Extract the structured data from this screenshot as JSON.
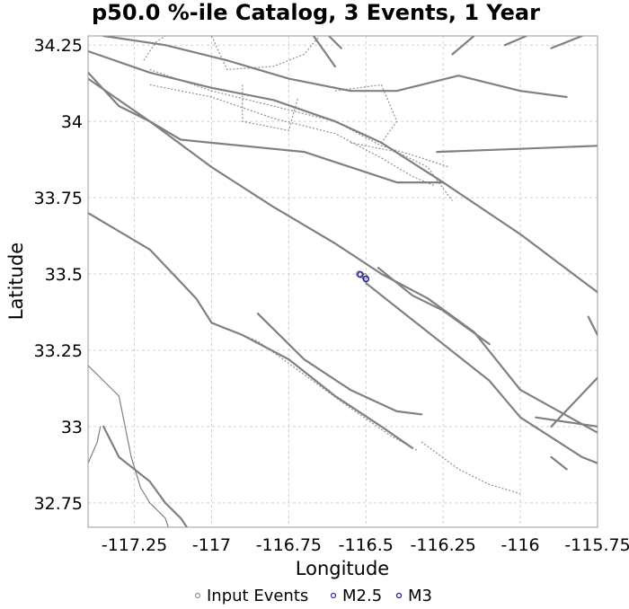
{
  "chart_data": {
    "type": "scatter",
    "title": "p50.0 %-ile Catalog, 3 Events, 1 Year",
    "xlabel": "Longitude",
    "ylabel": "Latitude",
    "xlim": [
      -117.4,
      -115.75
    ],
    "ylim": [
      32.67,
      34.28
    ],
    "xticks": [
      {
        "value": -117.25,
        "label": "-117.25"
      },
      {
        "value": -117.0,
        "label": "-117"
      },
      {
        "value": -116.75,
        "label": "-116.75"
      },
      {
        "value": -116.5,
        "label": "-116.5"
      },
      {
        "value": -116.25,
        "label": "-116.25"
      },
      {
        "value": -116.0,
        "label": "-116"
      },
      {
        "value": -115.75,
        "label": "-115.75"
      }
    ],
    "yticks": [
      {
        "value": 34.25,
        "label": "34.25"
      },
      {
        "value": 34.0,
        "label": "34"
      },
      {
        "value": 33.75,
        "label": "33.75"
      },
      {
        "value": 33.5,
        "label": "33.5"
      },
      {
        "value": 33.25,
        "label": "33.25"
      },
      {
        "value": 33.0,
        "label": "33"
      },
      {
        "value": 32.75,
        "label": "32.75"
      }
    ],
    "grid": true,
    "legend_position": "bottom",
    "series": [
      {
        "name": "Input Events",
        "color": "#909090",
        "marker": "circle-open",
        "points": [
          {
            "x": -116.522,
            "y": 33.5
          },
          {
            "x": -116.505,
            "y": 33.492
          }
        ]
      },
      {
        "name": "M2.5",
        "color": "#2a2aa0",
        "marker": "circle-open",
        "points": [
          {
            "x": -116.518,
            "y": 33.498
          }
        ]
      },
      {
        "name": "M3",
        "color": "#1a1a8a",
        "marker": "circle-open",
        "points": [
          {
            "x": -116.5,
            "y": 33.484
          }
        ]
      }
    ],
    "faults": {
      "solid": [
        [
          [
            -117.4,
            34.23
          ],
          [
            -117.2,
            34.16
          ],
          [
            -117.0,
            34.11
          ],
          [
            -116.8,
            34.07
          ],
          [
            -116.6,
            34.0
          ],
          [
            -116.45,
            33.93
          ],
          [
            -116.25,
            33.8
          ],
          [
            -116.0,
            33.63
          ],
          [
            -115.75,
            33.44
          ]
        ],
        [
          [
            -117.4,
            34.14
          ],
          [
            -117.2,
            34.0
          ],
          [
            -117.0,
            33.85
          ],
          [
            -116.8,
            33.72
          ],
          [
            -116.6,
            33.6
          ],
          [
            -116.45,
            33.5
          ],
          [
            -116.3,
            33.42
          ],
          [
            -116.15,
            33.31
          ],
          [
            -116.0,
            33.12
          ],
          [
            -115.75,
            32.98
          ]
        ],
        [
          [
            -117.4,
            33.7
          ],
          [
            -117.2,
            33.58
          ],
          [
            -117.05,
            33.42
          ],
          [
            -117.0,
            33.34
          ],
          [
            -116.9,
            33.3
          ],
          [
            -116.75,
            33.22
          ],
          [
            -116.6,
            33.1
          ],
          [
            -116.45,
            33.0
          ],
          [
            -116.35,
            32.93
          ]
        ],
        [
          [
            -116.5,
            33.47
          ],
          [
            -116.4,
            33.39
          ],
          [
            -116.25,
            33.27
          ],
          [
            -116.1,
            33.15
          ],
          [
            -116.0,
            33.03
          ],
          [
            -115.8,
            32.9
          ],
          [
            -115.75,
            32.88
          ]
        ],
        [
          [
            -116.85,
            33.37
          ],
          [
            -116.7,
            33.22
          ],
          [
            -116.55,
            33.12
          ],
          [
            -116.4,
            33.05
          ],
          [
            -116.32,
            33.04
          ]
        ],
        [
          [
            -117.4,
            34.16
          ],
          [
            -117.3,
            34.05
          ],
          [
            -117.2,
            34.0
          ],
          [
            -117.1,
            33.94
          ],
          [
            -116.9,
            33.92
          ],
          [
            -116.7,
            33.9
          ],
          [
            -116.55,
            33.85
          ],
          [
            -116.4,
            33.8
          ],
          [
            -116.25,
            33.8
          ]
        ],
        [
          [
            -117.35,
            34.28
          ],
          [
            -117.15,
            34.25
          ],
          [
            -116.95,
            34.2
          ],
          [
            -116.75,
            34.14
          ],
          [
            -116.55,
            34.1
          ],
          [
            -116.4,
            34.1
          ],
          [
            -116.2,
            34.15
          ],
          [
            -116.0,
            34.1
          ],
          [
            -115.85,
            34.08
          ]
        ],
        [
          [
            -116.27,
            33.9
          ],
          [
            -116.0,
            33.91
          ],
          [
            -115.75,
            33.92
          ]
        ],
        [
          [
            -116.46,
            33.52
          ],
          [
            -116.35,
            33.43
          ],
          [
            -116.25,
            33.38
          ],
          [
            -116.1,
            33.27
          ]
        ],
        [
          [
            -115.95,
            33.03
          ],
          [
            -115.75,
            33.0
          ]
        ],
        [
          [
            -115.9,
            32.9
          ],
          [
            -115.85,
            32.86
          ]
        ],
        [
          [
            -115.9,
            33.0
          ],
          [
            -115.75,
            33.16
          ]
        ],
        [
          [
            -116.22,
            34.22
          ],
          [
            -116.15,
            34.28
          ]
        ],
        [
          [
            -116.05,
            34.25
          ],
          [
            -115.98,
            34.28
          ]
        ],
        [
          [
            -115.9,
            34.24
          ],
          [
            -115.8,
            34.28
          ]
        ],
        [
          [
            -116.67,
            34.28
          ],
          [
            -116.6,
            34.18
          ]
        ],
        [
          [
            -116.62,
            34.28
          ],
          [
            -116.58,
            34.24
          ]
        ],
        [
          [
            -115.78,
            33.36
          ],
          [
            -115.75,
            33.3
          ]
        ],
        [
          [
            -117.35,
            33.0
          ],
          [
            -117.3,
            32.9
          ],
          [
            -117.2,
            32.82
          ],
          [
            -117.15,
            32.75
          ],
          [
            -117.1,
            32.7
          ],
          [
            -117.08,
            32.67
          ]
        ]
      ],
      "dotted": [
        [
          [
            -117.2,
            34.17
          ],
          [
            -117.0,
            34.1
          ],
          [
            -116.8,
            34.05
          ],
          [
            -116.6,
            34.0
          ],
          [
            -116.45,
            33.92
          ],
          [
            -116.32,
            33.88
          ],
          [
            -116.23,
            33.85
          ]
        ],
        [
          [
            -117.2,
            34.12
          ],
          [
            -117.0,
            34.08
          ],
          [
            -116.8,
            34.01
          ],
          [
            -116.6,
            33.96
          ],
          [
            -116.45,
            33.88
          ],
          [
            -116.35,
            33.82
          ],
          [
            -116.28,
            33.79
          ]
        ],
        [
          [
            -116.9,
            34.12
          ],
          [
            -116.9,
            34.0
          ],
          [
            -116.75,
            33.97
          ],
          [
            -116.72,
            34.08
          ]
        ],
        [
          [
            -116.6,
            34.1
          ],
          [
            -116.45,
            34.12
          ],
          [
            -116.4,
            34.0
          ],
          [
            -116.45,
            33.93
          ]
        ],
        [
          [
            -116.55,
            33.93
          ],
          [
            -116.4,
            33.9
          ],
          [
            -116.3,
            33.85
          ],
          [
            -116.25,
            33.78
          ],
          [
            -116.22,
            33.74
          ]
        ],
        [
          [
            -117.0,
            34.28
          ],
          [
            -116.95,
            34.17
          ],
          [
            -116.8,
            34.18
          ],
          [
            -116.7,
            34.22
          ],
          [
            -116.65,
            34.28
          ]
        ],
        [
          [
            -117.22,
            34.2
          ],
          [
            -117.18,
            34.26
          ],
          [
            -117.15,
            34.28
          ]
        ],
        [
          [
            -117.0,
            33.34
          ],
          [
            -116.85,
            33.28
          ],
          [
            -116.7,
            33.17
          ],
          [
            -116.55,
            33.06
          ],
          [
            -116.42,
            32.97
          ],
          [
            -116.33,
            32.92
          ]
        ],
        [
          [
            -116.32,
            32.95
          ],
          [
            -116.2,
            32.86
          ],
          [
            -116.1,
            32.81
          ],
          [
            -116.0,
            32.78
          ]
        ]
      ],
      "coast": [
        [
          [
            -117.4,
            33.2
          ],
          [
            -117.3,
            33.1
          ],
          [
            -117.28,
            33.0
          ],
          [
            -117.26,
            32.9
          ],
          [
            -117.23,
            32.8
          ],
          [
            -117.2,
            32.75
          ],
          [
            -117.15,
            32.7
          ],
          [
            -117.14,
            32.67
          ]
        ],
        [
          [
            -117.4,
            32.88
          ],
          [
            -117.37,
            32.95
          ],
          [
            -117.36,
            33.0
          ]
        ]
      ]
    }
  }
}
